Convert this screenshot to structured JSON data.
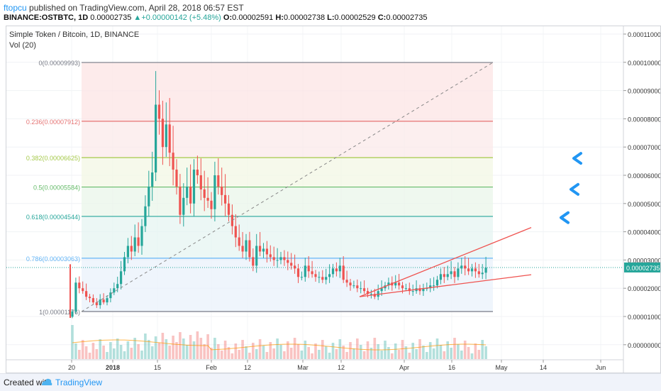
{
  "header": {
    "author": "ftopcu",
    "published": "published on TradingView.com, April 28, 2018 06:57 EST",
    "symbol": "BINANCE:OSTBTC, 1D",
    "last": "0.00002735",
    "change": "+0.00000142 (+5.48%)",
    "o_label": "O:",
    "o_val": "0.00002591",
    "h_label": "H:",
    "h_val": "0.00002738",
    "l_label": "L:",
    "l_val": "0.00002529",
    "c_label": "C:",
    "c_val": "0.00002735"
  },
  "legend": {
    "title": "Simple Token / Bitcoin, 1D, BINANCE",
    "vol": "Vol (20)"
  },
  "footer": {
    "created": "Created with",
    "brand": "TradingView"
  },
  "colors": {
    "up": "#26a69a",
    "down": "#ef5350",
    "accent": "#2196f3"
  },
  "chart_data": {
    "type": "candlestick",
    "title": "Simple Token / Bitcoin, 1D, BINANCE",
    "ylim": [
      -4e-07,
      1.15e-05
    ],
    "y_ticks": [
      "0.00011000",
      "0.00010000",
      "0.00009000",
      "0.00008000",
      "0.00007000",
      "0.00006000",
      "0.00005000",
      "0.00004000",
      "0.00003000",
      "0.00002000",
      "0.00001000",
      "0.00000000"
    ],
    "x_ticks": [
      "20",
      "2018",
      "15",
      "Feb",
      "12",
      "Mar",
      "12",
      "Apr",
      "16",
      "May",
      "14",
      "Jun"
    ],
    "last_price_label": "0.00002735",
    "fib_levels": [
      {
        "label": "0(0.00009993)",
        "value": 9.993e-05,
        "color": "#787b86"
      },
      {
        "label": "0.236(0.00007912)",
        "value": 7.912e-05,
        "color": "#e57373"
      },
      {
        "label": "0.382(0.00006625)",
        "value": 6.625e-05,
        "color": "#a5c94a"
      },
      {
        "label": "0.5(0.00005584)",
        "value": 5.584e-05,
        "color": "#66bb6a"
      },
      {
        "label": "0.618(0.00004544)",
        "value": 4.544e-05,
        "color": "#26a69a"
      },
      {
        "label": "0.786(0.00003063)",
        "value": 3.063e-05,
        "color": "#64b5f6"
      },
      {
        "label": "1(0.00001176)",
        "value": 1.176e-05,
        "color": "#787b86"
      }
    ],
    "daily_close": [
      1.18e-05,
      2.2e-05,
      2e-05,
      1.9e-05,
      1.7e-05,
      1.65e-05,
      1.5e-05,
      1.4e-05,
      1.6e-05,
      1.5e-05,
      1.65e-05,
      1.85e-05,
      2e-05,
      2.15e-05,
      2.6e-05,
      3.1e-05,
      3.5e-05,
      3.3e-05,
      3.8e-05,
      3.5e-05,
      4.2e-05,
      4.9e-05,
      5.6e-05,
      6.1e-05,
      8.5e-05,
      8e-05,
      7e-05,
      7.8e-05,
      6.8e-05,
      6.2e-05,
      5.6e-05,
      4.6e-05,
      5.2e-05,
      5.6e-05,
      5e-05,
      6.2e-05,
      6e-05,
      5.5e-05,
      5.2e-05,
      5.1e-05,
      4.8e-05,
      6e-05,
      5.6e-05,
      5.3e-05,
      5e-05,
      4.6e-05,
      4.2e-05,
      3.8e-05,
      3.5e-05,
      3.3e-05,
      3.7e-05,
      3.1e-05,
      2.8e-05,
      3.5e-05,
      3.3e-05,
      3.4e-05,
      3.2e-05,
      3.1e-05,
      3e-05,
      3e-05,
      3.1e-05,
      3e-05,
      2.9e-05,
      2.8e-05,
      2.7e-05,
      2.4e-05,
      2.4e-05,
      2.8e-05,
      2.6e-05,
      2.5e-05,
      2.4e-05,
      2.4e-05,
      2.3e-05,
      2.4e-05,
      2.5e-05,
      2.7e-05,
      2.6e-05,
      2.8e-05,
      2.3e-05,
      2.2e-05,
      2.1e-05,
      2.1e-05,
      2e-05,
      2e-05,
      1.9e-05,
      1.8e-05,
      1.8e-05,
      1.7e-05,
      1.9e-05,
      2e-05,
      2.1e-05,
      2.2e-05,
      2.1e-05,
      2.2e-05,
      2.1e-05,
      2e-05,
      2e-05,
      1.9e-05,
      1.9e-05,
      2e-05,
      1.9e-05,
      2e-05,
      2e-05,
      2.1e-05,
      2.1e-05,
      2.3e-05,
      2.5e-05,
      2.4e-05,
      2.5e-05,
      2.6e-05,
      2.4e-05,
      2.7e-05,
      2.8e-05,
      2.7e-05,
      2.6e-05,
      2.7e-05,
      2.6e-05,
      2.5e-05,
      2.55e-05,
      2.73e-05
    ],
    "annotations": {
      "trendline_upper": {
        "from": [
          "Mar 20",
          1.7e-05
        ],
        "to": [
          "May 10",
          4.15e-05
        ],
        "color": "#ef5350"
      },
      "trendline_lower": {
        "from": [
          "Mar 20",
          1.7e-05
        ],
        "to": [
          "May 10",
          2.48e-05
        ],
        "color": "#ef5350"
      },
      "diagonal": {
        "from": [
          "Dec 21",
          1.176e-05
        ],
        "to": [
          "Apr 25",
          9.993e-05
        ],
        "style": "dashed"
      },
      "arrows": [
        6.6e-05,
        5.5e-05,
        4.5e-05
      ]
    }
  }
}
